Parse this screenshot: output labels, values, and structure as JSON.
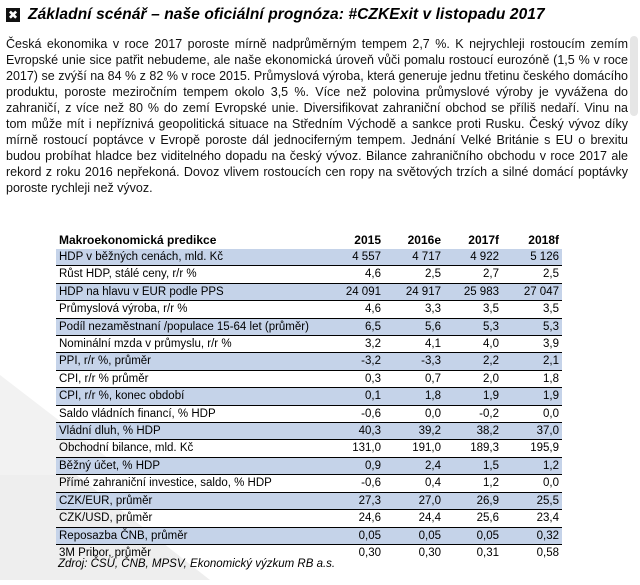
{
  "heading": {
    "icon": "cross-box-icon",
    "title": "Základní scénář – naše oficiální prognóza: #CZKExit v listopadu 2017"
  },
  "paragraph": "Česká ekonomika v roce 2017 poroste mírně nadprůměrným tempem 2,7 %. K nejrychleji rostoucím zemím Evropské unie sice patřit nebudeme, ale naše ekonomická úroveň vůči pomalu rostoucí eurozóně (1,5 % v roce 2017) se zvýší na 84 % z 82 % v roce 2015. Průmyslová výroba, která generuje jednu třetinu českého domácího produktu, poroste meziročním tempem okolo 3,5 %. Více než polovina průmyslové výroby je vyvážena do zahraničí, z více než 80 % do zemí Evropské unie. Diversifikovat zahraniční obchod se příliš nedaří. Vinu na tom může mít i nepříznivá geopolitická situace na Středním Východě a sankce proti Rusku. Český vývoz díky mírně rostoucí poptávce v Evropě poroste dál jednociferným tempem. Jednání Velké Británie s EU o brexitu budou probíhat hladce bez viditelného dopadu na český vývoz. Bilance zahraničního obchodu v roce 2017 ale rekord z roku 2016 nepřekoná. Dovoz vlivem rostoucích cen ropy na světových trzích a silné domácí poptávky poroste rychleji než vývoz.",
  "table": {
    "headers": [
      "Makroekonomická predikce",
      "2015",
      "2016e",
      "2017f",
      "2018f"
    ],
    "rows": [
      {
        "label": "HDP v běžných cenách, mld. Kč",
        "values": [
          "4 557",
          "4 717",
          "4 922",
          "5 126"
        ],
        "highlight": true
      },
      {
        "label": "Růst HDP, stálé ceny, r/r %",
        "values": [
          "4,6",
          "2,5",
          "2,7",
          "2,5"
        ],
        "highlight": false
      },
      {
        "label": "HDP na hlavu v EUR podle PPS",
        "values": [
          "24 091",
          "24 917",
          "25 983",
          "27 047"
        ],
        "highlight": true
      },
      {
        "label": "Průmyslová výroba, r/r %",
        "values": [
          "4,6",
          "3,3",
          "3,5",
          "3,5"
        ],
        "highlight": false
      },
      {
        "label": "Podíl nezaměstnaní /populace 15-64 let (průměr)",
        "values": [
          "6,5",
          "5,6",
          "5,3",
          "5,3"
        ],
        "highlight": true
      },
      {
        "label": "Nominální mzda v průmyslu, r/r %",
        "values": [
          "3,2",
          "4,1",
          "4,0",
          "3,9"
        ],
        "highlight": false
      },
      {
        "label": "PPI, r/r %, průměr",
        "values": [
          "-3,2",
          "-3,3",
          "2,2",
          "2,1"
        ],
        "highlight": true
      },
      {
        "label": "CPI, r/r % průměr",
        "values": [
          "0,3",
          "0,7",
          "2,0",
          "1,8"
        ],
        "highlight": false
      },
      {
        "label": "CPI, r/r %, konec období",
        "values": [
          "0,1",
          "1,8",
          "1,9",
          "1,9"
        ],
        "highlight": true
      },
      {
        "label": "Saldo vládních financí, % HDP",
        "values": [
          "-0,6",
          "0,0",
          "-0,2",
          "0,0"
        ],
        "highlight": false
      },
      {
        "label": "Vládní dluh, % HDP",
        "values": [
          "40,3",
          "39,2",
          "38,2",
          "37,0"
        ],
        "highlight": true
      },
      {
        "label": "Obchodní bilance, mld. Kč",
        "values": [
          "131,0",
          "191,0",
          "189,3",
          "195,9"
        ],
        "highlight": false
      },
      {
        "label": "Běžný účet, % HDP",
        "values": [
          "0,9",
          "2,4",
          "1,5",
          "1,2"
        ],
        "highlight": true
      },
      {
        "label": "Přímé zahraniční investice, saldo, % HDP",
        "values": [
          "-0,6",
          "0,4",
          "1,2",
          "0,0"
        ],
        "highlight": false
      },
      {
        "label": "CZK/EUR, průměr",
        "values": [
          "27,3",
          "27,0",
          "26,9",
          "25,5"
        ],
        "highlight": true
      },
      {
        "label": "CZK/USD, průměr",
        "values": [
          "24,6",
          "24,4",
          "25,6",
          "23,4"
        ],
        "highlight": false
      },
      {
        "label": "Reposazba ČNB, průměr",
        "values": [
          "0,05",
          "0,05",
          "0,05",
          "0,32"
        ],
        "highlight": true
      },
      {
        "label": "3M Pribor, průměr",
        "values": [
          "0,30",
          "0,30",
          "0,31",
          "0,58"
        ],
        "highlight": false
      }
    ]
  },
  "source": "Zdroj: ČSÚ, ČNB, MPSV, Ekonomický výzkum RB a.s.",
  "colors": {
    "highlight_row": "#c5d3e9",
    "watermark": "#eeeeee"
  }
}
